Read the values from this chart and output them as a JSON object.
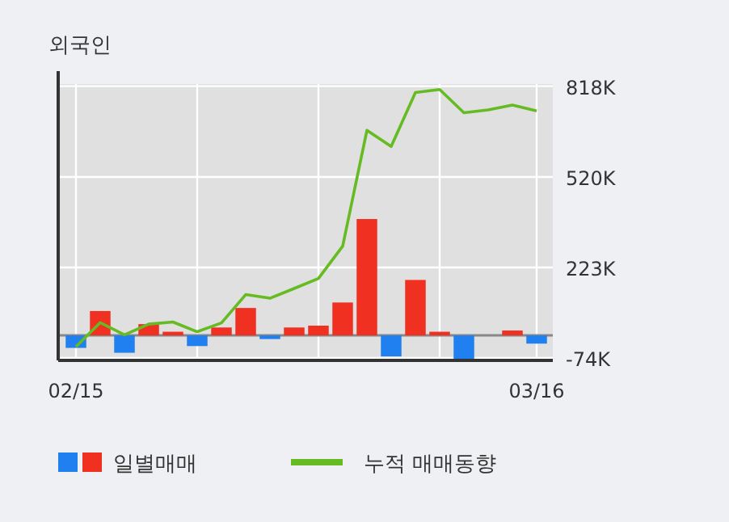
{
  "chart_data": {
    "type": "bar",
    "title": "외국인",
    "categories": [
      "02/15",
      null,
      null,
      null,
      null,
      null,
      null,
      null,
      null,
      null,
      null,
      null,
      null,
      null,
      null,
      null,
      null,
      null,
      null,
      "03/16"
    ],
    "series": [
      {
        "name": "일별매매",
        "colors": [
          "#2080f0",
          "#f03020",
          "#2080f0",
          "#f03020",
          "#f03020",
          "#2080f0",
          "#f03020",
          "#f03020",
          "#2080f0",
          "#f03020",
          "#f03020",
          "#f03020",
          "#f03020",
          "#2080f0",
          "#f03020",
          "#f03020",
          "#2080f0",
          "#f03020",
          "#f03020",
          "#2080f0"
        ],
        "values": [
          -41,
          80,
          -57,
          37,
          12,
          -35,
          26,
          90,
          -12,
          26,
          32,
          108,
          382,
          -69,
          182,
          12,
          -80,
          0,
          16,
          -27
        ]
      },
      {
        "name": "누적 매매동향",
        "type": "line",
        "color": "#66bb22",
        "values": [
          -37,
          42,
          2,
          37,
          44,
          12,
          41,
          134,
          122,
          154,
          187,
          293,
          673,
          620,
          797,
          807,
          731,
          740,
          756,
          737
        ]
      }
    ],
    "ylim": [
      -82,
      825
    ],
    "yticks": [
      {
        "value": 818,
        "label": "818K"
      },
      {
        "value": 520,
        "label": "520K"
      },
      {
        "value": 223,
        "label": "223K"
      },
      {
        "value": -74,
        "label": "-74K"
      }
    ],
    "grid": true,
    "legend": "bottom"
  }
}
